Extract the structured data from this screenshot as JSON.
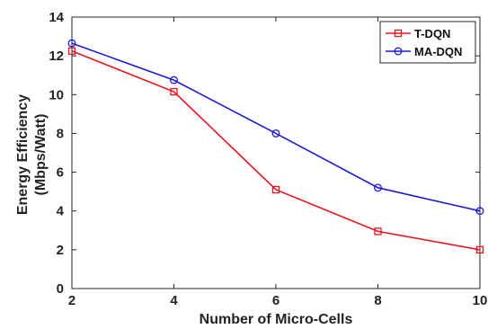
{
  "chart_data": {
    "type": "line",
    "x": [
      2,
      4,
      6,
      8,
      10
    ],
    "series": [
      {
        "name": "T-DQN",
        "values": [
          12.25,
          10.15,
          5.1,
          2.95,
          2.0
        ],
        "color": "#e8141d",
        "marker": "square"
      },
      {
        "name": "MA-DQN",
        "values": [
          12.65,
          10.75,
          8.0,
          5.2,
          4.0
        ],
        "color": "#1c1cd6",
        "marker": "circle"
      }
    ],
    "title": "",
    "xlabel": "Number of Micro-Cells",
    "ylabel_lines": [
      "Energy Efficiency",
      "(Mbps/Watt)"
    ],
    "xlim": [
      2,
      10
    ],
    "ylim": [
      0,
      14
    ],
    "x_ticks": [
      "2",
      "4",
      "6",
      "8",
      "10"
    ],
    "y_ticks": [
      "0",
      "2",
      "4",
      "6",
      "8",
      "10",
      "12",
      "14"
    ],
    "grid": false,
    "legend_position": "top-right"
  }
}
